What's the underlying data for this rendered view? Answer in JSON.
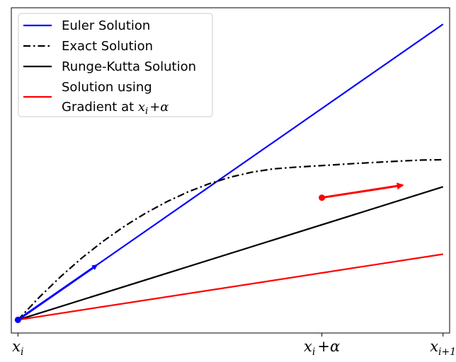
{
  "chart_data": {
    "type": "line",
    "title": "",
    "xlabel": "",
    "ylabel": "",
    "xlim": [
      -0.0155,
      1.0155
    ],
    "ylim": [
      -0.04,
      0.95
    ],
    "grid": false,
    "legend_position": "upper-left",
    "x_ticks": [
      {
        "value": 0.0,
        "base": "x",
        "sub": "i",
        "label": "x_i"
      },
      {
        "value": 0.715,
        "base": "x",
        "sub": "i",
        "suffix": "+α",
        "label": "x_i + α"
      },
      {
        "value": 1.0,
        "base": "x",
        "sub": "i+1",
        "label": "x_{i+1}"
      }
    ],
    "series": [
      {
        "name": "Euler Solution",
        "color": "#0000ff",
        "style": "solid",
        "x": [
          0.0,
          1.0
        ],
        "y": [
          0.0,
          0.9
        ]
      },
      {
        "name": "Exact Solution",
        "color": "#000000",
        "style": "dashdot",
        "x": [
          0.0,
          0.05,
          0.1,
          0.15,
          0.2,
          0.25,
          0.3,
          0.35,
          0.4,
          0.45,
          0.5,
          0.55,
          0.6,
          0.65,
          0.7,
          0.75,
          0.8,
          0.85,
          0.9,
          0.95,
          1.0
        ],
        "y": [
          0.0,
          0.0685,
          0.131,
          0.188,
          0.239,
          0.2845,
          0.3245,
          0.3595,
          0.3895,
          0.4145,
          0.4345,
          0.4495,
          0.4595,
          0.4645,
          0.4685,
          0.4725,
          0.4765,
          0.48,
          0.4835,
          0.4865,
          0.4875
        ]
      },
      {
        "name": "Runge-Kutta Solution",
        "color": "#000000",
        "style": "solid",
        "x": [
          0.0,
          1.0
        ],
        "y": [
          0.0,
          0.405
        ]
      },
      {
        "name": "Solution using\nGradient at x_i + α",
        "legend_lines": [
          "Solution using",
          "Gradient at "
        ],
        "legend_math": {
          "base": "x",
          "sub": "i",
          "suffix": "+α"
        },
        "color": "#ff0000",
        "style": "solid",
        "x": [
          0.0,
          1.0
        ],
        "y": [
          0.0,
          0.2
        ]
      }
    ],
    "annotations": [
      {
        "kind": "arrow",
        "color": "#0000ff",
        "from": {
          "x": 0.0,
          "y": 0.0
        },
        "to": {
          "x": 0.185,
          "y": 0.166
        }
      },
      {
        "kind": "arrow",
        "color": "#ff0000",
        "from": {
          "x": 0.715,
          "y": 0.372
        },
        "to": {
          "x": 0.905,
          "y": 0.41
        }
      }
    ],
    "markers": [
      {
        "x": 0.0,
        "y": 0.0,
        "color": "#0000ff"
      },
      {
        "x": 0.715,
        "y": 0.372,
        "color": "#ff0000"
      }
    ]
  }
}
